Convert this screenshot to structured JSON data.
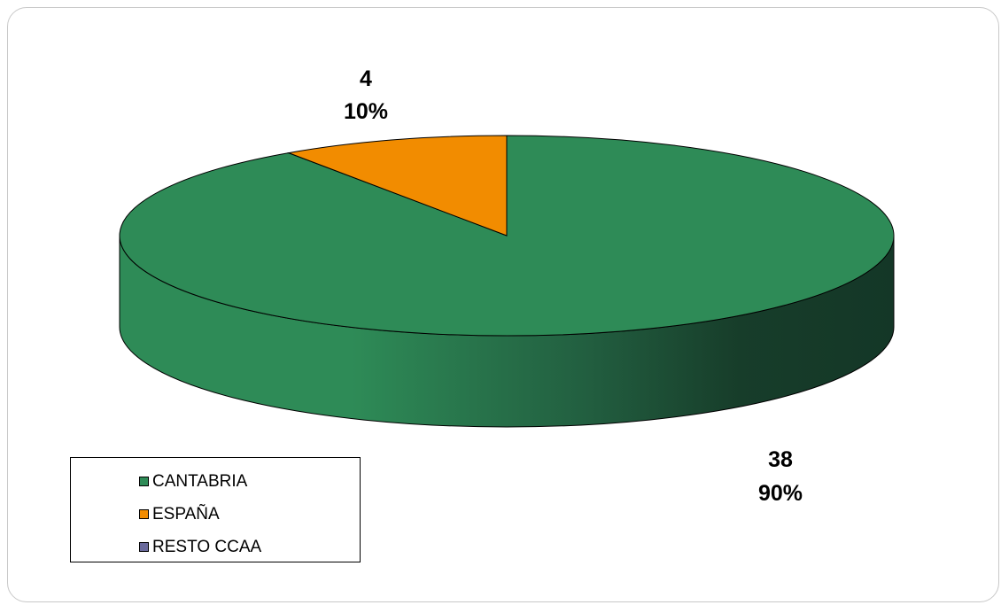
{
  "chart_data": {
    "type": "pie",
    "style": "3d",
    "categories": [
      "CANTABRIA",
      "ESPAÑA",
      "RESTO CCAA"
    ],
    "values": [
      38,
      4,
      0
    ],
    "percent_labels": [
      "90%",
      "10%",
      ""
    ],
    "value_labels": [
      "38",
      "4",
      ""
    ],
    "colors": [
      "#2e8b57",
      "#f28c00",
      "#6a6a9c"
    ],
    "legend_position": "bottom-left",
    "title": ""
  },
  "legend": {
    "items": [
      {
        "label": "CANTABRIA",
        "color": "#2e8b57"
      },
      {
        "label": "ESPAÑA",
        "color": "#f28c00"
      },
      {
        "label": "RESTO CCAA",
        "color": "#6a6a9c"
      }
    ]
  },
  "labels": {
    "cantabria_value": "38",
    "cantabria_percent": "90%",
    "espana_value": "4",
    "espana_percent": "10%"
  }
}
